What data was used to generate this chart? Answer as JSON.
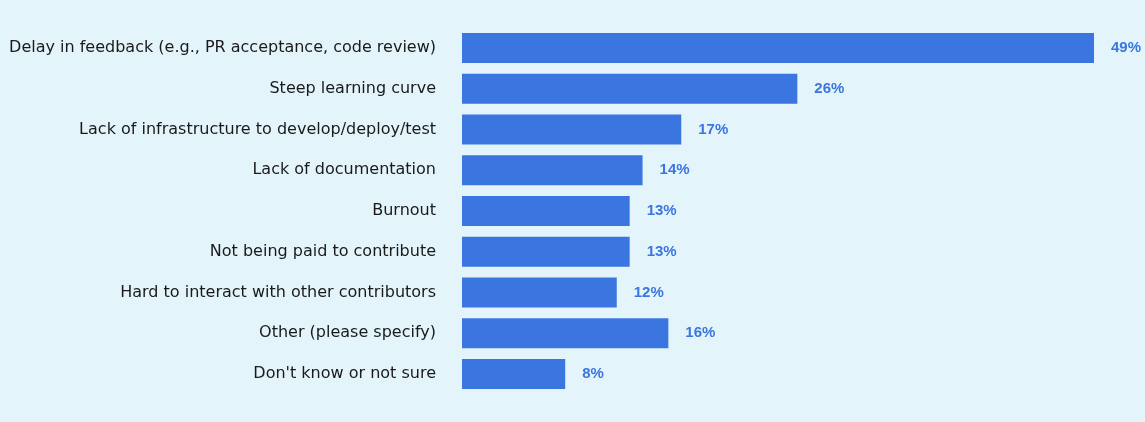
{
  "chart_data": {
    "type": "bar",
    "orientation": "horizontal",
    "categories": [
      "Delay in feedback (e.g., PR acceptance, code review)",
      "Steep learning curve",
      "Lack of infrastructure to develop/deploy/test",
      "Lack of documentation",
      "Burnout",
      "Not being paid to contribute",
      "Hard to interact with other contributors",
      "Other (please specify)",
      "Don't know or not sure"
    ],
    "values": [
      49,
      26,
      17,
      14,
      13,
      13,
      12,
      16,
      8
    ],
    "value_labels": [
      "49%",
      "26%",
      "17%",
      "14%",
      "13%",
      "13%",
      "12%",
      "16%",
      "8%"
    ],
    "color": "#3b76e0",
    "legend": false
  }
}
